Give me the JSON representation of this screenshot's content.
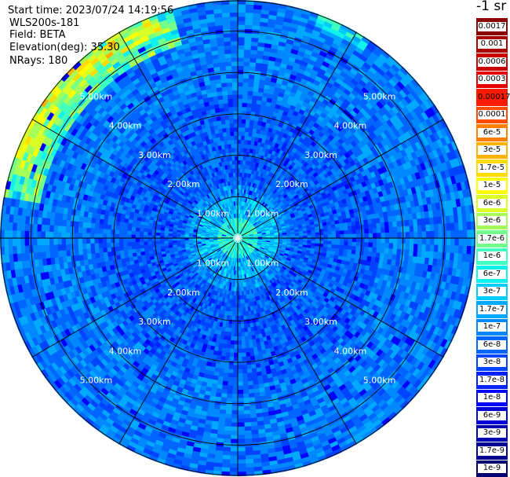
{
  "chart_data": {
    "type": "heatmap",
    "subtype": "polar-ppi",
    "title": "",
    "unit_label": "-1 sr",
    "info": {
      "start_time": "Start time: 2023/07/24 14:19:56",
      "instrument": "WLS200s-181",
      "field": "Field: BETA",
      "elevation": "Elevation(deg): 35.30",
      "nrays": "NRays: 180"
    },
    "range_rings_km": [
      1,
      2,
      3,
      4,
      5
    ],
    "ring_labels": [
      "1.00km",
      "2.00km",
      "3.00km",
      "4.00km",
      "5.00km"
    ],
    "max_range_km": 5.75,
    "spokes_deg": [
      0,
      30,
      60,
      90,
      120,
      150,
      180,
      210,
      240,
      270,
      300,
      330
    ],
    "colorbar": [
      {
        "label": "0.0017",
        "color": "#8b0000"
      },
      {
        "label": "0.001",
        "color": "#a80000"
      },
      {
        "label": "0.0006",
        "color": "#c80000"
      },
      {
        "label": "0.0003",
        "color": "#e60000"
      },
      {
        "label": "0.00017",
        "color": "#ff1a00"
      },
      {
        "label": "0.0001",
        "color": "#ff4d00"
      },
      {
        "label": "6e-5",
        "color": "#ff8000"
      },
      {
        "label": "3e-5",
        "color": "#ffb300"
      },
      {
        "label": "1.7e-5",
        "color": "#ffdd00"
      },
      {
        "label": "1e-5",
        "color": "#ffff00"
      },
      {
        "label": "6e-6",
        "color": "#d9ff26"
      },
      {
        "label": "3e-6",
        "color": "#a6ff59"
      },
      {
        "label": "1.7e-6",
        "color": "#73ff8c"
      },
      {
        "label": "1e-6",
        "color": "#40ffbf"
      },
      {
        "label": "6e-7",
        "color": "#12f2ed"
      },
      {
        "label": "3e-7",
        "color": "#00ccff"
      },
      {
        "label": "1.7e-7",
        "color": "#00a8ff"
      },
      {
        "label": "1e-7",
        "color": "#0088ff"
      },
      {
        "label": "6e-8",
        "color": "#0066ff"
      },
      {
        "label": "3e-8",
        "color": "#0044ff"
      },
      {
        "label": "1.7e-8",
        "color": "#0022ff"
      },
      {
        "label": "1e-8",
        "color": "#0000ff"
      },
      {
        "label": "6e-9",
        "color": "#0000d8"
      },
      {
        "label": "3e-9",
        "color": "#0000b0"
      },
      {
        "label": "1.7e-9",
        "color": "#000090"
      },
      {
        "label": "1e-9",
        "color": "#000070"
      }
    ],
    "grid": true,
    "legend_position": "right"
  }
}
